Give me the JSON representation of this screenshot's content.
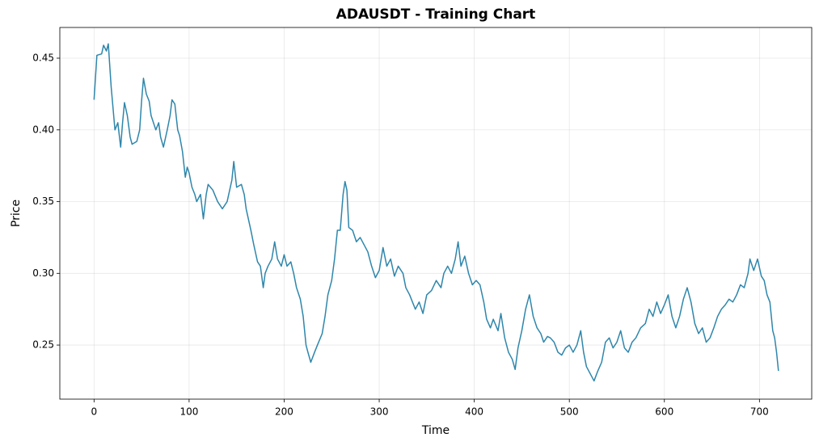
{
  "chart_data": {
    "type": "line",
    "title": "ADAUSDT - Training Chart",
    "x_label": "Time",
    "y_label": "Price",
    "xlim": [
      -36,
      755
    ],
    "ylim": [
      0.2123,
      0.4714
    ],
    "xticks": [
      0,
      100,
      200,
      300,
      400,
      500,
      600,
      700
    ],
    "yticks": [
      0.25,
      {
        "value": 0.3,
        "label": "0.30"
      },
      0.35,
      {
        "value": 0.4,
        "label": "0.40"
      },
      0.45
    ],
    "grid": true,
    "x": [
      0,
      3,
      8,
      10,
      13,
      15,
      18,
      20,
      22,
      25,
      28,
      30,
      32,
      35,
      38,
      40,
      45,
      48,
      50,
      52,
      55,
      58,
      60,
      65,
      68,
      70,
      73,
      77,
      80,
      82,
      85,
      88,
      90,
      93,
      96,
      98,
      100,
      103,
      106,
      108,
      112,
      115,
      118,
      120,
      125,
      130,
      135,
      140,
      145,
      147,
      150,
      155,
      158,
      160,
      165,
      168,
      172,
      175,
      178,
      180,
      183,
      187,
      190,
      193,
      197,
      200,
      203,
      207,
      210,
      213,
      217,
      220,
      223,
      225,
      228,
      232,
      235,
      240,
      243,
      246,
      250,
      253,
      256,
      259,
      262,
      264,
      266,
      268,
      272,
      276,
      280,
      284,
      288,
      292,
      296,
      300,
      304,
      308,
      312,
      316,
      320,
      325,
      328,
      332,
      335,
      338,
      342,
      346,
      350,
      355,
      360,
      365,
      368,
      372,
      376,
      380,
      383,
      386,
      390,
      394,
      398,
      402,
      406,
      410,
      413,
      417,
      420,
      425,
      428,
      432,
      436,
      440,
      443,
      446,
      450,
      454,
      458,
      462,
      466,
      470,
      473,
      477,
      480,
      484,
      488,
      492,
      496,
      500,
      504,
      508,
      512,
      515,
      518,
      522,
      526,
      530,
      534,
      538,
      542,
      546,
      550,
      554,
      558,
      562,
      566,
      570,
      575,
      580,
      584,
      588,
      592,
      596,
      600,
      604,
      608,
      612,
      616,
      620,
      624,
      628,
      632,
      636,
      640,
      644,
      648,
      652,
      656,
      660,
      664,
      668,
      672,
      676,
      680,
      684,
      688,
      690,
      694,
      698,
      702,
      705,
      708,
      711,
      714,
      716,
      718,
      720
    ],
    "series": [
      {
        "name": "ADAUSDT",
        "color": "#2e86ab",
        "values": [
          0.421,
          0.452,
          0.453,
          0.459,
          0.455,
          0.46,
          0.43,
          0.415,
          0.4,
          0.405,
          0.388,
          0.405,
          0.419,
          0.41,
          0.395,
          0.39,
          0.392,
          0.4,
          0.42,
          0.436,
          0.425,
          0.42,
          0.41,
          0.4,
          0.405,
          0.395,
          0.388,
          0.4,
          0.41,
          0.421,
          0.418,
          0.4,
          0.396,
          0.385,
          0.367,
          0.374,
          0.37,
          0.36,
          0.355,
          0.35,
          0.355,
          0.338,
          0.355,
          0.362,
          0.358,
          0.35,
          0.345,
          0.35,
          0.365,
          0.378,
          0.36,
          0.362,
          0.355,
          0.345,
          0.33,
          0.32,
          0.308,
          0.305,
          0.29,
          0.3,
          0.305,
          0.31,
          0.322,
          0.31,
          0.305,
          0.313,
          0.305,
          0.308,
          0.3,
          0.29,
          0.282,
          0.27,
          0.25,
          0.245,
          0.238,
          0.245,
          0.25,
          0.258,
          0.27,
          0.285,
          0.295,
          0.31,
          0.33,
          0.33,
          0.355,
          0.364,
          0.358,
          0.332,
          0.33,
          0.322,
          0.325,
          0.32,
          0.315,
          0.305,
          0.297,
          0.302,
          0.318,
          0.305,
          0.31,
          0.298,
          0.305,
          0.3,
          0.29,
          0.285,
          0.28,
          0.275,
          0.28,
          0.272,
          0.285,
          0.288,
          0.295,
          0.29,
          0.3,
          0.305,
          0.3,
          0.31,
          0.322,
          0.305,
          0.312,
          0.3,
          0.292,
          0.295,
          0.292,
          0.28,
          0.268,
          0.262,
          0.268,
          0.26,
          0.272,
          0.255,
          0.245,
          0.24,
          0.233,
          0.248,
          0.26,
          0.275,
          0.285,
          0.27,
          0.262,
          0.258,
          0.252,
          0.256,
          0.255,
          0.252,
          0.245,
          0.243,
          0.248,
          0.25,
          0.245,
          0.25,
          0.26,
          0.245,
          0.235,
          0.23,
          0.225,
          0.232,
          0.238,
          0.252,
          0.255,
          0.248,
          0.252,
          0.26,
          0.248,
          0.245,
          0.252,
          0.255,
          0.262,
          0.265,
          0.275,
          0.27,
          0.28,
          0.272,
          0.278,
          0.285,
          0.27,
          0.262,
          0.27,
          0.282,
          0.29,
          0.28,
          0.265,
          0.258,
          0.262,
          0.252,
          0.255,
          0.262,
          0.27,
          0.275,
          0.278,
          0.282,
          0.28,
          0.285,
          0.292,
          0.29,
          0.3,
          0.31,
          0.302,
          0.31,
          0.298,
          0.295,
          0.285,
          0.28,
          0.26,
          0.255,
          0.245,
          0.232
        ]
      }
    ]
  }
}
